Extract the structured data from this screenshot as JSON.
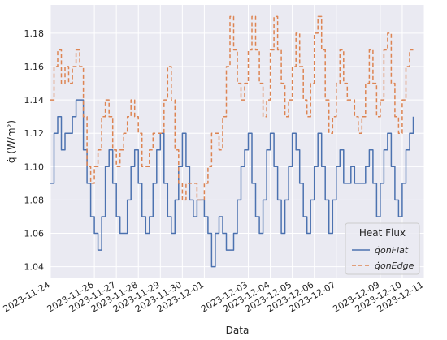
{
  "chart_data": {
    "type": "line",
    "title": "",
    "xlabel": "Data",
    "ylabel": "q̇ (W/m²)",
    "ylim": [
      1.033,
      1.197
    ],
    "xlim": [
      "2023-11-24T00:00",
      "2023-12-11T00:00"
    ],
    "grid": true,
    "legend_position": "bottom-right",
    "legend_title": "Heat Flux",
    "x_ticks": [
      "2023-11-24",
      "2023-11-26",
      "2023-11-27",
      "2023-11-28",
      "2023-11-29",
      "2023-11-30",
      "2023-12-01",
      "2023-12-03",
      "2023-12-04",
      "2023-12-05",
      "2023-12-06",
      "2023-12-07",
      "2023-12-09",
      "2023-12-10",
      "2023-12-11"
    ],
    "y_ticks": [
      1.04,
      1.06,
      1.08,
      1.1,
      1.12,
      1.14,
      1.16,
      1.18
    ],
    "series": [
      {
        "name": "q̇onFlat",
        "color": "#4c72b0",
        "style": "solid",
        "x": [
          "2023-11-24T00:00",
          "2023-11-24T04:00",
          "2023-11-24T08:00",
          "2023-11-24T12:00",
          "2023-11-24T16:00",
          "2023-11-24T20:00",
          "2023-11-25T00:00",
          "2023-11-25T04:00",
          "2023-11-25T08:00",
          "2023-11-25T12:00",
          "2023-11-25T16:00",
          "2023-11-25T20:00",
          "2023-11-26T00:00",
          "2023-11-26T04:00",
          "2023-11-26T08:00",
          "2023-11-26T12:00",
          "2023-11-26T16:00",
          "2023-11-26T20:00",
          "2023-11-27T00:00",
          "2023-11-27T04:00",
          "2023-11-27T08:00",
          "2023-11-27T12:00",
          "2023-11-27T16:00",
          "2023-11-27T20:00",
          "2023-11-28T00:00",
          "2023-11-28T04:00",
          "2023-11-28T08:00",
          "2023-11-28T12:00",
          "2023-11-28T16:00",
          "2023-11-28T20:00",
          "2023-11-29T00:00",
          "2023-11-29T04:00",
          "2023-11-29T08:00",
          "2023-11-29T12:00",
          "2023-11-29T16:00",
          "2023-11-29T20:00",
          "2023-11-30T00:00",
          "2023-11-30T04:00",
          "2023-11-30T08:00",
          "2023-11-30T12:00",
          "2023-11-30T16:00",
          "2023-11-30T20:00",
          "2023-12-01T00:00",
          "2023-12-01T04:00",
          "2023-12-01T08:00",
          "2023-12-01T12:00",
          "2023-12-01T16:00",
          "2023-12-01T20:00",
          "2023-12-02T00:00",
          "2023-12-02T04:00",
          "2023-12-02T08:00",
          "2023-12-02T12:00",
          "2023-12-02T16:00",
          "2023-12-02T20:00",
          "2023-12-03T00:00",
          "2023-12-03T04:00",
          "2023-12-03T08:00",
          "2023-12-03T12:00",
          "2023-12-03T16:00",
          "2023-12-03T20:00",
          "2023-12-04T00:00",
          "2023-12-04T04:00",
          "2023-12-04T08:00",
          "2023-12-04T12:00",
          "2023-12-04T16:00",
          "2023-12-04T20:00",
          "2023-12-05T00:00",
          "2023-12-05T04:00",
          "2023-12-05T08:00",
          "2023-12-05T12:00",
          "2023-12-05T16:00",
          "2023-12-05T20:00",
          "2023-12-06T00:00",
          "2023-12-06T04:00",
          "2023-12-06T08:00",
          "2023-12-06T12:00",
          "2023-12-06T16:00",
          "2023-12-06T20:00",
          "2023-12-07T00:00",
          "2023-12-07T04:00",
          "2023-12-07T08:00",
          "2023-12-07T12:00",
          "2023-12-07T16:00",
          "2023-12-07T20:00",
          "2023-12-08T00:00",
          "2023-12-08T04:00",
          "2023-12-08T08:00",
          "2023-12-08T12:00",
          "2023-12-08T16:00",
          "2023-12-08T20:00",
          "2023-12-09T00:00",
          "2023-12-09T04:00",
          "2023-12-09T08:00",
          "2023-12-09T12:00",
          "2023-12-09T16:00",
          "2023-12-09T20:00",
          "2023-12-10T00:00",
          "2023-12-10T04:00",
          "2023-12-10T08:00",
          "2023-12-10T12:00"
        ],
        "values": [
          1.09,
          1.12,
          1.13,
          1.11,
          1.12,
          1.12,
          1.13,
          1.14,
          1.14,
          1.11,
          1.09,
          1.07,
          1.06,
          1.05,
          1.07,
          1.1,
          1.11,
          1.09,
          1.07,
          1.06,
          1.06,
          1.08,
          1.1,
          1.11,
          1.09,
          1.07,
          1.06,
          1.07,
          1.09,
          1.11,
          1.12,
          1.09,
          1.07,
          1.06,
          1.08,
          1.1,
          1.12,
          1.1,
          1.08,
          1.07,
          1.08,
          1.08,
          1.07,
          1.06,
          1.04,
          1.06,
          1.07,
          1.06,
          1.05,
          1.05,
          1.06,
          1.08,
          1.1,
          1.11,
          1.12,
          1.09,
          1.07,
          1.06,
          1.08,
          1.11,
          1.12,
          1.1,
          1.08,
          1.06,
          1.08,
          1.1,
          1.12,
          1.11,
          1.09,
          1.07,
          1.06,
          1.08,
          1.1,
          1.12,
          1.1,
          1.08,
          1.06,
          1.08,
          1.1,
          1.11,
          1.09,
          1.09,
          1.1,
          1.09,
          1.09,
          1.09,
          1.1,
          1.11,
          1.09,
          1.07,
          1.09,
          1.11,
          1.12,
          1.1,
          1.08,
          1.07,
          1.09,
          1.11,
          1.12,
          1.13
        ]
      },
      {
        "name": "q̇onEdge",
        "color": "#dd8452",
        "style": "dashed",
        "x": [
          "2023-11-24T00:00",
          "2023-11-24T04:00",
          "2023-11-24T08:00",
          "2023-11-24T12:00",
          "2023-11-24T16:00",
          "2023-11-24T20:00",
          "2023-11-25T00:00",
          "2023-11-25T04:00",
          "2023-11-25T08:00",
          "2023-11-25T12:00",
          "2023-11-25T16:00",
          "2023-11-25T20:00",
          "2023-11-26T00:00",
          "2023-11-26T04:00",
          "2023-11-26T08:00",
          "2023-11-26T12:00",
          "2023-11-26T16:00",
          "2023-11-26T20:00",
          "2023-11-27T00:00",
          "2023-11-27T04:00",
          "2023-11-27T08:00",
          "2023-11-27T12:00",
          "2023-11-27T16:00",
          "2023-11-27T20:00",
          "2023-11-28T00:00",
          "2023-11-28T04:00",
          "2023-11-28T08:00",
          "2023-11-28T12:00",
          "2023-11-28T16:00",
          "2023-11-28T20:00",
          "2023-11-29T00:00",
          "2023-11-29T04:00",
          "2023-11-29T08:00",
          "2023-11-29T12:00",
          "2023-11-29T16:00",
          "2023-11-29T20:00",
          "2023-11-30T00:00",
          "2023-11-30T04:00",
          "2023-11-30T08:00",
          "2023-11-30T12:00",
          "2023-11-30T16:00",
          "2023-11-30T20:00",
          "2023-12-01T00:00",
          "2023-12-01T04:00",
          "2023-12-01T08:00",
          "2023-12-01T12:00",
          "2023-12-01T16:00",
          "2023-12-01T20:00",
          "2023-12-02T00:00",
          "2023-12-02T04:00",
          "2023-12-02T08:00",
          "2023-12-02T12:00",
          "2023-12-02T16:00",
          "2023-12-02T20:00",
          "2023-12-03T00:00",
          "2023-12-03T04:00",
          "2023-12-03T08:00",
          "2023-12-03T12:00",
          "2023-12-03T16:00",
          "2023-12-03T20:00",
          "2023-12-04T00:00",
          "2023-12-04T04:00",
          "2023-12-04T08:00",
          "2023-12-04T12:00",
          "2023-12-04T16:00",
          "2023-12-04T20:00",
          "2023-12-05T00:00",
          "2023-12-05T04:00",
          "2023-12-05T08:00",
          "2023-12-05T12:00",
          "2023-12-05T16:00",
          "2023-12-05T20:00",
          "2023-12-06T00:00",
          "2023-12-06T04:00",
          "2023-12-06T08:00",
          "2023-12-06T12:00",
          "2023-12-06T16:00",
          "2023-12-06T20:00",
          "2023-12-07T00:00",
          "2023-12-07T04:00",
          "2023-12-07T08:00",
          "2023-12-07T12:00",
          "2023-12-07T16:00",
          "2023-12-07T20:00",
          "2023-12-08T00:00",
          "2023-12-08T04:00",
          "2023-12-08T08:00",
          "2023-12-08T12:00",
          "2023-12-08T16:00",
          "2023-12-08T20:00",
          "2023-12-09T00:00",
          "2023-12-09T04:00",
          "2023-12-09T08:00",
          "2023-12-09T12:00",
          "2023-12-09T16:00",
          "2023-12-09T20:00",
          "2023-12-10T00:00",
          "2023-12-10T04:00",
          "2023-12-10T08:00",
          "2023-12-10T12:00"
        ],
        "values": [
          1.14,
          1.16,
          1.17,
          1.15,
          1.16,
          1.15,
          1.16,
          1.17,
          1.16,
          1.13,
          1.1,
          1.09,
          1.1,
          1.11,
          1.13,
          1.14,
          1.13,
          1.11,
          1.1,
          1.11,
          1.12,
          1.13,
          1.14,
          1.13,
          1.12,
          1.1,
          1.1,
          1.11,
          1.12,
          1.12,
          1.12,
          1.14,
          1.16,
          1.14,
          1.11,
          1.09,
          1.08,
          1.09,
          1.09,
          1.09,
          1.08,
          1.08,
          1.09,
          1.1,
          1.12,
          1.12,
          1.11,
          1.13,
          1.16,
          1.19,
          1.17,
          1.15,
          1.14,
          1.15,
          1.17,
          1.19,
          1.17,
          1.15,
          1.13,
          1.14,
          1.17,
          1.19,
          1.17,
          1.15,
          1.13,
          1.14,
          1.16,
          1.18,
          1.16,
          1.14,
          1.13,
          1.15,
          1.18,
          1.19,
          1.17,
          1.14,
          1.12,
          1.13,
          1.15,
          1.17,
          1.15,
          1.14,
          1.14,
          1.13,
          1.12,
          1.13,
          1.15,
          1.17,
          1.15,
          1.13,
          1.14,
          1.17,
          1.18,
          1.15,
          1.13,
          1.12,
          1.14,
          1.16,
          1.17,
          1.17
        ]
      }
    ]
  }
}
